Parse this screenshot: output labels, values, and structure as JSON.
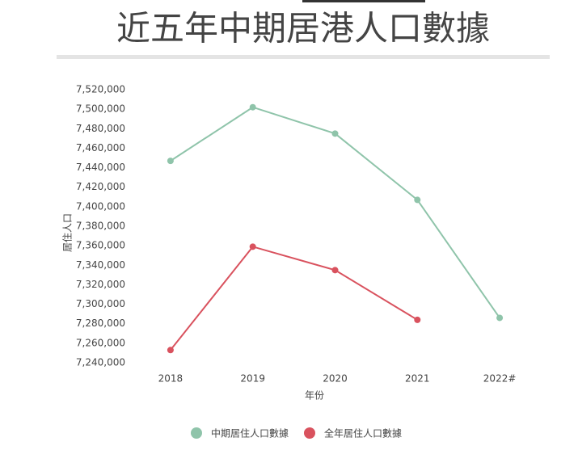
{
  "chart_data": {
    "type": "line",
    "title": "近五年中期居港人口數據",
    "x_label": "年份",
    "y_label": "居住人口",
    "categories": [
      "2018",
      "2019",
      "2020",
      "2021",
      "2022#"
    ],
    "series": [
      {
        "name": "中期居住人口數據",
        "color": "#8fc4aa",
        "values": [
          7447000,
          7502000,
          7475000,
          7407000,
          7286000
        ]
      },
      {
        "name": "全年居住人口數據",
        "color": "#d9525e",
        "values": [
          7253000,
          7359000,
          7335000,
          7284000,
          null
        ]
      }
    ],
    "ylim": [
      7240000,
      7520000
    ],
    "yticks": [
      {
        "value": 7240000,
        "label": "7,240,000"
      },
      {
        "value": 7260000,
        "label": "7,260,000"
      },
      {
        "value": 7280000,
        "label": "7,280,000"
      },
      {
        "value": 7300000,
        "label": "7,300,000"
      },
      {
        "value": 7320000,
        "label": "7,320,000"
      },
      {
        "value": 7340000,
        "label": "7,340,000"
      },
      {
        "value": 7360000,
        "label": "7,360,000"
      },
      {
        "value": 7380000,
        "label": "7,380,000"
      },
      {
        "value": 7400000,
        "label": "7,400,000"
      },
      {
        "value": 7420000,
        "label": "7,420,000"
      },
      {
        "value": 7440000,
        "label": "7,440,000"
      },
      {
        "value": 7460000,
        "label": "7,460,000"
      },
      {
        "value": 7480000,
        "label": "7,480,000"
      },
      {
        "value": 7500000,
        "label": "7,500,000"
      },
      {
        "value": 7520000,
        "label": "7,520,000"
      }
    ],
    "grid": false,
    "legend": "bottom"
  }
}
